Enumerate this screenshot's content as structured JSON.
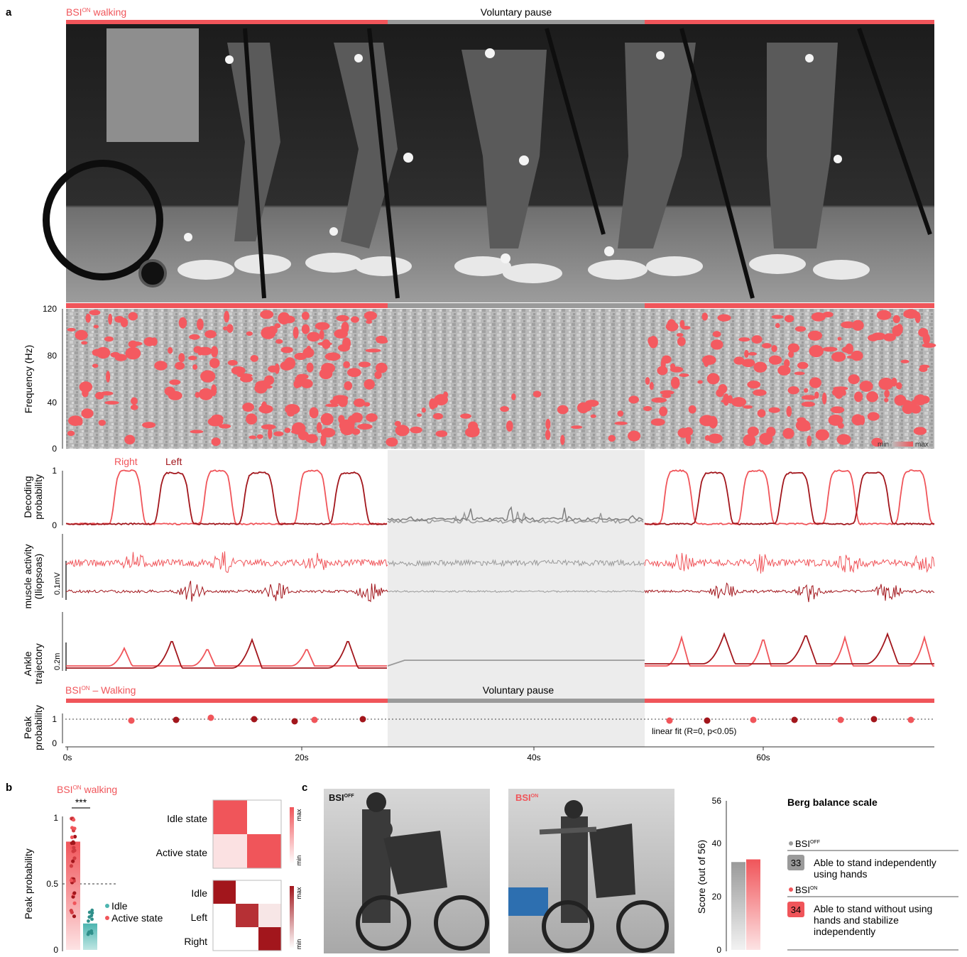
{
  "panel_a": {
    "letter": "a",
    "top_label_walk_prefix": "BSI",
    "top_label_walk_sup": "ON",
    "top_label_walk_suffix": " walking",
    "top_label_pause": "Voluntary pause",
    "colorbar_min": "min",
    "colorbar_max": "max",
    "legend_right": "Right",
    "legend_left": "Left",
    "scalebar_emg": "0.1mV",
    "scalebar_ankle": "0.2m",
    "bottom_label_walk_prefix": "BSI",
    "bottom_label_walk_sup": "ON",
    "bottom_label_walk_suffix": " – Walking",
    "bottom_label_pause": "Voluntary pause",
    "fit_label": "linear fit (R=0, p<0.05)",
    "rows": {
      "spectrogram": "Frequency (Hz)",
      "decoding_line1": "Decoding",
      "decoding_line2": "probability",
      "muscle_line1": "muscle activity",
      "muscle_line2": "(Iliopsoas)",
      "ankle_line1": "Ankle",
      "ankle_line2": "trajectory",
      "peak_line1": "Peak",
      "peak_line2": "probability"
    },
    "freq_ticks": [
      "0",
      "40",
      "80",
      "120"
    ],
    "prob_ticks": [
      "0",
      "1"
    ],
    "peak_ticks": [
      "0",
      "1"
    ],
    "time_ticks": [
      "0s",
      "20s",
      "40s",
      "60s"
    ]
  },
  "panel_b": {
    "letter": "b",
    "title_prefix": "BSI",
    "title_sup": "ON",
    "title_suffix": " walking",
    "significance": "***",
    "ylabel": "Peak probability",
    "yticks": [
      "0",
      "0.5",
      "1"
    ],
    "legend_idle": "Idle",
    "legend_active": "Active state",
    "matrix1_rows": [
      "Idle state",
      "Active state"
    ],
    "matrix2_rows": [
      "Idle",
      "Left",
      "Right"
    ],
    "colorbar_min": "min",
    "colorbar_max": "max"
  },
  "panel_c": {
    "letter": "c",
    "photo1_prefix": "BSI",
    "photo1_sup": "OFF",
    "photo2_prefix": "BSI",
    "photo2_sup": "ON",
    "ylabel": "Score  (out of 56)",
    "yticks": [
      "0",
      "20",
      "40",
      "56"
    ],
    "berg_title": "Berg balance scale",
    "off_label_prefix": "BSI",
    "off_label_sup": "OFF",
    "off_score": "33",
    "off_desc_line1": "Able to stand independently",
    "off_desc_line2": "using hands",
    "on_label_prefix": "BSI",
    "on_label_sup": "ON",
    "on_score": "34",
    "on_desc_line1": "Able to stand without using",
    "on_desc_line2": "hands and stabilize",
    "on_desc_line3": "independently"
  },
  "colors": {
    "accent": "#f0555a",
    "dark_red": "#a2161c",
    "grey": "#9a9a9a",
    "teal": "#4db5b0",
    "pause_bg": "#ececec"
  },
  "chart_data": [
    {
      "type": "bar",
      "panel": "b",
      "categories": [
        "Active state",
        "Idle"
      ],
      "values": [
        0.82,
        0.2
      ],
      "ylim": [
        0,
        1
      ]
    },
    {
      "type": "bar",
      "panel": "c",
      "categories": [
        "BSI OFF",
        "BSI ON"
      ],
      "values": [
        33,
        34
      ],
      "ylim": [
        0,
        56
      ]
    }
  ]
}
